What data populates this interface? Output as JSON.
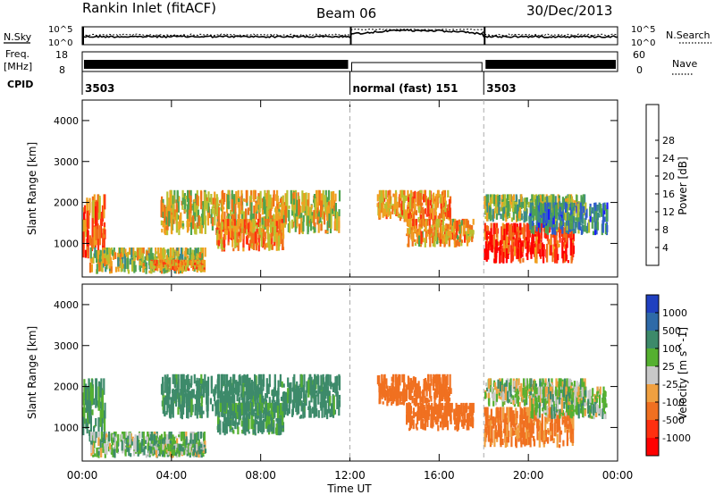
{
  "header": {
    "title": "Rankin Inlet (fitACF)",
    "beam": "Beam 06",
    "date": "30/Dec/2013"
  },
  "side_labels": {
    "nsky": "N.Sky",
    "nsearch": "N.Search",
    "freq": "Freq.",
    "freq_unit": "[MHz]",
    "nave": "Nave",
    "cpid": "CPID"
  },
  "noise_axis": {
    "left_top": "10^5",
    "left_bottom": "10^0",
    "right_top": "10^5",
    "right_bottom": "10^0"
  },
  "freq_axis": {
    "left_top": "18",
    "left_bottom": "8",
    "right_top": "60",
    "right_bottom": "0"
  },
  "cpid_segments": [
    {
      "label": "3503",
      "start_hr": 0,
      "end_hr": 12
    },
    {
      "label": "normal (fast) 151",
      "start_hr": 12,
      "end_hr": 18
    },
    {
      "label": "3503",
      "start_hr": 18,
      "end_hr": 24
    }
  ],
  "xaxis": {
    "label": "Time UT",
    "ticks": [
      "00:00",
      "04:00",
      "08:00",
      "12:00",
      "16:00",
      "20:00",
      "00:00"
    ],
    "tick_hours": [
      0,
      4,
      8,
      12,
      16,
      20,
      24
    ]
  },
  "power_colorbar": {
    "label": "Power [dB]",
    "ticks": [
      "4",
      "8",
      "12",
      "16",
      "20",
      "24",
      "28"
    ],
    "colors": [
      "#1a1aff",
      "#2f5ccc",
      "#3a8a8a",
      "#4fa34f",
      "#b8c030",
      "#f0a020",
      "#f07018",
      "#ff3010",
      "#ff0000"
    ]
  },
  "velocity_colorbar": {
    "label": "Velocity [m s^-1]",
    "ticks": [
      "1000",
      "500",
      "100",
      "25",
      "-25",
      "-100",
      "-500",
      "-1000"
    ],
    "colors": [
      "#2040c0",
      "#2e6aa8",
      "#3d8a6a",
      "#55b030",
      "#c8c8c8",
      "#f0a040",
      "#f07020",
      "#ff3010",
      "#ff0000"
    ]
  },
  "chart_data": {
    "type": "heatmap",
    "panels": [
      {
        "name": "power",
        "ylabel": "Slant Range [km]",
        "ylim": [
          180,
          4500
        ],
        "yticks": [
          1000,
          2000,
          3000,
          4000
        ]
      },
      {
        "name": "velocity",
        "ylabel": "Slant Range [km]",
        "ylim": [
          180,
          4500
        ],
        "yticks": [
          1000,
          2000,
          3000,
          4000
        ]
      }
    ],
    "xlim_hours": [
      0,
      24
    ],
    "mode_change_hours": [
      12,
      18
    ],
    "echo_regions": [
      {
        "t0": 0.0,
        "t1": 1.0,
        "r0": 600,
        "r1": 2200,
        "power": 26,
        "velocity": 150
      },
      {
        "t0": 0.3,
        "t1": 5.5,
        "r0": 250,
        "r1": 900,
        "power": 18,
        "velocity": 60
      },
      {
        "t0": 3.0,
        "t1": 5.5,
        "r0": 300,
        "r1": 600,
        "power": 24,
        "velocity": 60
      },
      {
        "t0": 3.5,
        "t1": 11.5,
        "r0": 1200,
        "r1": 2300,
        "power": 20,
        "velocity": 180
      },
      {
        "t0": 6.0,
        "t1": 9.0,
        "r0": 800,
        "r1": 1600,
        "power": 24,
        "velocity": 150
      },
      {
        "t0": 13.2,
        "t1": 16.5,
        "r0": 1500,
        "r1": 2300,
        "power": 24,
        "velocity": -300
      },
      {
        "t0": 14.5,
        "t1": 17.5,
        "r0": 900,
        "r1": 1600,
        "power": 22,
        "velocity": -400
      },
      {
        "t0": 18.0,
        "t1": 22.0,
        "r0": 500,
        "r1": 1500,
        "power": 30,
        "velocity": -150
      },
      {
        "t0": 18.0,
        "t1": 22.5,
        "r0": 1500,
        "r1": 2200,
        "power": 16,
        "velocity": 20
      },
      {
        "t0": 20.0,
        "t1": 23.5,
        "r0": 1200,
        "r1": 2000,
        "power": 10,
        "velocity": 50
      }
    ]
  }
}
